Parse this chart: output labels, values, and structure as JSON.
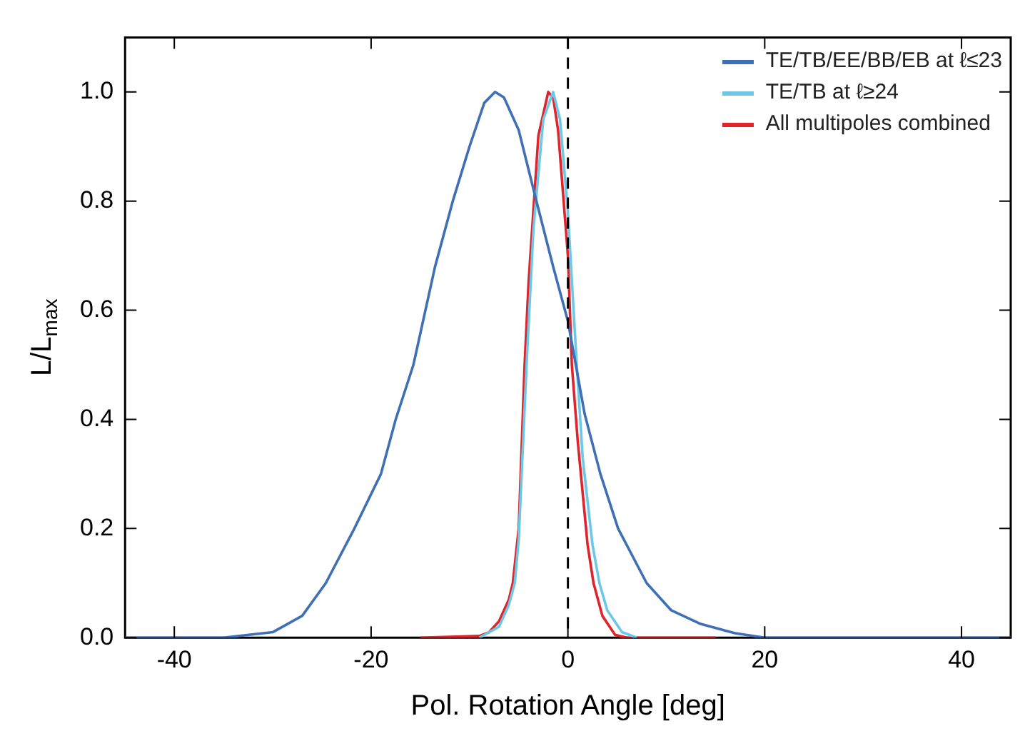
{
  "chart_data": {
    "type": "line",
    "xlabel": "Pol. Rotation Angle [deg]",
    "ylabel": "L/L$_{max}$",
    "xlim": [
      -45,
      45
    ],
    "ylim": [
      0,
      1.1
    ],
    "xticks": [
      -40,
      -20,
      0,
      20,
      40
    ],
    "yticks": [
      {
        "value": 0,
        "label": "0.0"
      },
      {
        "value": 0.2,
        "label": "0.2"
      },
      {
        "value": 0.4,
        "label": "0.4"
      },
      {
        "value": 0.6,
        "label": "0.6"
      },
      {
        "value": 0.8,
        "label": "0.8"
      },
      {
        "value": 1,
        "label": "1.0"
      }
    ],
    "grid": false,
    "legend": "top right",
    "marker": "none",
    "line_style": "solid",
    "ref_lines": [
      {
        "axis": "x",
        "value": 0,
        "color": "#000000",
        "line_style": "dashed"
      }
    ],
    "series": [
      {
        "name": "TE/TB/EE/BB/EB at ℓ≤23",
        "color": "#3f6fb5",
        "x": [
          -45,
          -35,
          -30,
          -27,
          -24.6,
          -21.7,
          -19,
          -17.5,
          -15.7,
          -13.5,
          -11.7,
          -10,
          -8.5,
          -7.4,
          -6.5,
          -5,
          -3.2,
          -1.5,
          0,
          1.7,
          3.3,
          5.1,
          8,
          10.5,
          13.5,
          17,
          20,
          45
        ],
        "values": [
          0,
          0,
          0.01,
          0.04,
          0.1,
          0.2,
          0.3,
          0.4,
          0.5,
          0.68,
          0.8,
          0.9,
          0.98,
          1,
          0.99,
          0.93,
          0.8,
          0.68,
          0.58,
          0.41,
          0.3,
          0.2,
          0.1,
          0.05,
          0.025,
          0.008,
          0,
          0
        ]
      },
      {
        "name": "TE/TB at ℓ≥24",
        "color": "#6cc8e6",
        "x": [
          -9,
          -7,
          -6,
          -5.4,
          -5,
          -4.2,
          -3.5,
          -2.5,
          -1.5,
          -0.8,
          0,
          0.9,
          1.5,
          2.5,
          3.2,
          4,
          5.5,
          7
        ],
        "values": [
          0,
          0.02,
          0.06,
          0.1,
          0.18,
          0.5,
          0.75,
          0.95,
          1,
          0.95,
          0.78,
          0.5,
          0.33,
          0.17,
          0.1,
          0.05,
          0.01,
          0
        ]
      },
      {
        "name": "All multipoles combined",
        "color": "#e0242c",
        "x": [
          -15,
          -9,
          -8,
          -7,
          -6,
          -5.6,
          -5,
          -4.4,
          -4,
          -3,
          -2,
          -1.5,
          -1,
          0,
          0.4,
          1,
          2,
          2.6,
          3.5,
          4.8,
          6,
          15
        ],
        "values": [
          0,
          0.003,
          0.01,
          0.03,
          0.07,
          0.1,
          0.2,
          0.5,
          0.65,
          0.92,
          1,
          0.99,
          0.93,
          0.7,
          0.5,
          0.36,
          0.17,
          0.1,
          0.04,
          0.005,
          0,
          0
        ]
      }
    ]
  }
}
